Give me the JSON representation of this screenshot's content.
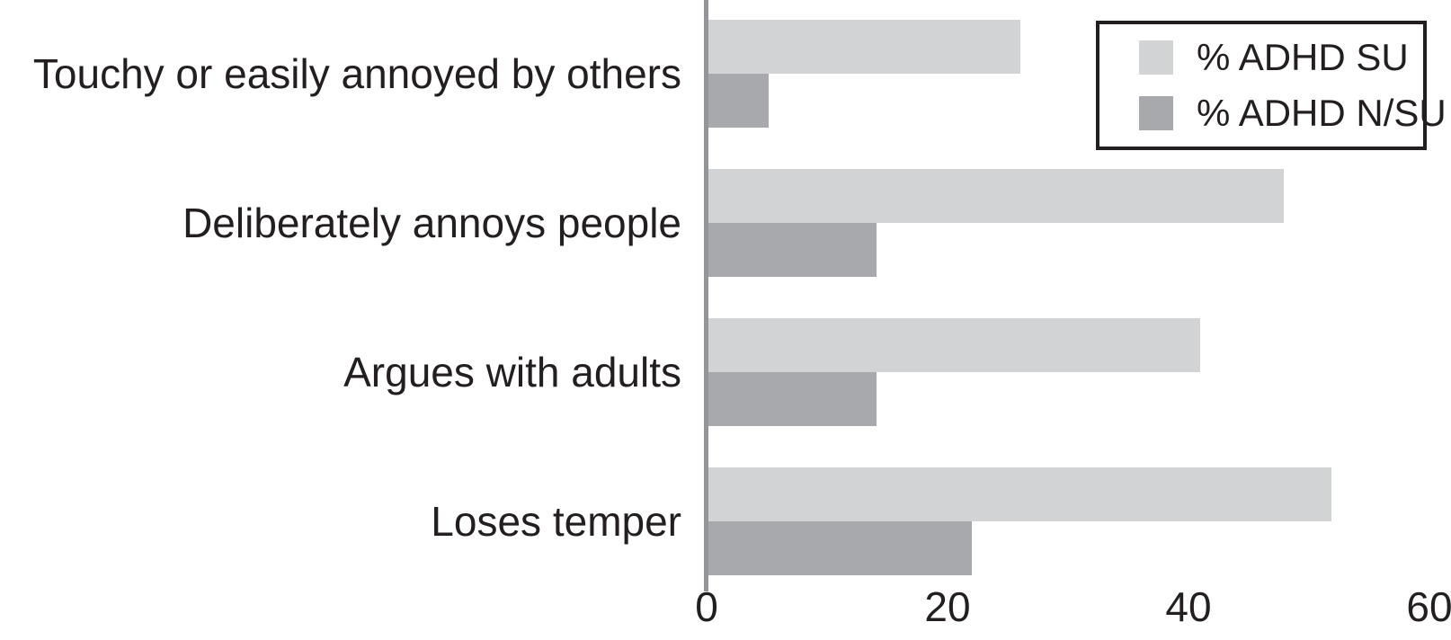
{
  "chart_data": {
    "type": "bar",
    "orientation": "horizontal",
    "title": "",
    "xlabel": "",
    "ylabel": "",
    "categories": [
      "Touchy or easily annoyed by others",
      "Deliberately annoys people",
      "Argues with adults",
      "Loses temper"
    ],
    "series": [
      {
        "name": "% ADHD SU",
        "color": "#d1d3d4",
        "values": [
          26,
          48,
          41,
          52
        ]
      },
      {
        "name": "% ADHD N/SU",
        "color": "#a7a9ac",
        "values": [
          5,
          14,
          14,
          22
        ]
      }
    ],
    "x_ticks": [
      0,
      20,
      40,
      60
    ],
    "xlim": [
      0,
      60
    ],
    "grid": false,
    "legend_position": "top-right",
    "colors": {
      "axis_line": "#939598",
      "text": "#231f20",
      "background": "#ffffff",
      "legend_border": "#231f20"
    }
  }
}
